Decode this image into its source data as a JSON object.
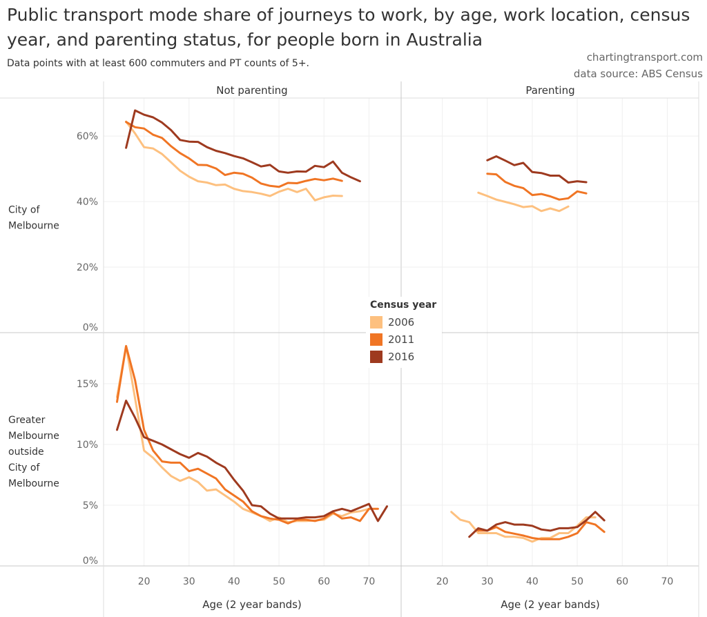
{
  "title": "Public transport mode share of journeys to work, by age, work location, census year, and parenting status, for people born in Australia",
  "subtitle": "Data points with at least 600 commuters and PT counts of 5+.",
  "credits": [
    "chartingtransport.com",
    "data source: ABS Census"
  ],
  "legend": {
    "title": "Census year",
    "items": [
      {
        "label": "2006",
        "color": "#fdc07f"
      },
      {
        "label": "2011",
        "color": "#f07524"
      },
      {
        "label": "2016",
        "color": "#9e3a1f"
      }
    ]
  },
  "chart_data": {
    "type": "line",
    "xlabel": "Age (2 year bands)",
    "xlim": [
      11,
      77
    ],
    "xticks": [
      20,
      30,
      40,
      50,
      60,
      70
    ],
    "grid": true,
    "legend_placement": "center",
    "columns": [
      "Not parenting",
      "Parenting"
    ],
    "rows": [
      {
        "label": [
          "City of",
          "Melbourne"
        ],
        "ylim": [
          0,
          71.6
        ],
        "yticks": [
          0,
          20,
          40,
          60
        ],
        "ytick_labels": [
          "0%",
          "20%",
          "40%",
          "60%"
        ]
      },
      {
        "label": [
          "Greater",
          "Melbourne",
          "outside",
          "City of",
          "Melbourne"
        ],
        "ylim": [
          0,
          19.2
        ],
        "yticks": [
          0,
          5,
          10,
          15
        ],
        "ytick_labels": [
          "0%",
          "5%",
          "10%",
          "15%"
        ]
      }
    ],
    "panels": [
      {
        "row": 0,
        "col": 0,
        "series": [
          {
            "name": "2006",
            "x_start": 16,
            "values": [
              64.4,
              60.8,
              56.6,
              56.2,
              54.5,
              52.0,
              49.4,
              47.6,
              46.2,
              45.8,
              45.0,
              45.2,
              43.9,
              43.2,
              42.9,
              42.4,
              41.7,
              43.0,
              43.9,
              42.9,
              43.9,
              40.4,
              41.3,
              41.8,
              41.7
            ]
          },
          {
            "name": "2011",
            "x_start": 16,
            "values": [
              64.3,
              62.7,
              62.3,
              60.4,
              59.4,
              56.9,
              54.8,
              53.2,
              51.2,
              51.1,
              50.1,
              48.1,
              48.8,
              48.5,
              47.3,
              45.5,
              44.8,
              44.5,
              45.7,
              45.6,
              46.3,
              46.9,
              46.5,
              47.0,
              46.3
            ]
          },
          {
            "name": "2016",
            "x_start": 16,
            "values": [
              56.4,
              67.8,
              66.5,
              65.7,
              64.1,
              61.8,
              58.8,
              58.3,
              58.2,
              56.6,
              55.5,
              54.8,
              53.9,
              53.2,
              52.0,
              50.7,
              51.2,
              49.2,
              48.8,
              49.2,
              49.1,
              50.9,
              50.5,
              52.2,
              48.8,
              47.4,
              46.2
            ]
          }
        ]
      },
      {
        "row": 0,
        "col": 1,
        "series": [
          {
            "name": "2006",
            "x_start": 28,
            "values": [
              42.7,
              41.7,
              40.6,
              39.9,
              39.2,
              38.3,
              38.6,
              37.1,
              37.9,
              37.1,
              38.5
            ]
          },
          {
            "name": "2011",
            "x_start": 30,
            "values": [
              48.5,
              48.3,
              46.0,
              44.8,
              44.1,
              42.0,
              42.3,
              41.6,
              40.6,
              41.0,
              43.1,
              42.5
            ]
          },
          {
            "name": "2016",
            "x_start": 30,
            "values": [
              52.6,
              53.8,
              52.5,
              51.1,
              51.8,
              49.0,
              48.7,
              47.9,
              47.9,
              45.8,
              46.2,
              45.9
            ]
          }
        ]
      },
      {
        "row": 1,
        "col": 0,
        "series": [
          {
            "name": "2006",
            "x_start": 14,
            "values": [
              13.9,
              18.1,
              13.8,
              9.5,
              8.9,
              8.1,
              7.4,
              7.0,
              7.3,
              6.9,
              6.2,
              6.3,
              5.8,
              5.3,
              4.7,
              4.4,
              4.1,
              3.7,
              4.0,
              3.6,
              3.7,
              3.7,
              3.75,
              3.8,
              4.3,
              4.1,
              4.4,
              4.5,
              4.7
            ]
          },
          {
            "name": "2011",
            "x_start": 14,
            "values": [
              13.5,
              18.1,
              15.3,
              11.2,
              9.5,
              8.6,
              8.5,
              8.5,
              7.8,
              8.0,
              7.6,
              7.2,
              6.3,
              5.8,
              5.3,
              4.5,
              4.1,
              3.9,
              3.8,
              3.5,
              3.8,
              3.8,
              3.7,
              3.9,
              4.4,
              3.9,
              4.0,
              3.7,
              4.7,
              4.7
            ]
          },
          {
            "name": "2016",
            "x_start": 14,
            "values": [
              11.2,
              13.6,
              12.2,
              10.6,
              10.3,
              10.0,
              9.6,
              9.2,
              8.9,
              9.3,
              9.0,
              8.5,
              8.1,
              7.1,
              6.2,
              5.0,
              4.9,
              4.3,
              3.9,
              3.9,
              3.9,
              4.0,
              4.0,
              4.1,
              4.5,
              4.7,
              4.5,
              4.8,
              5.1,
              3.7,
              4.9
            ]
          }
        ]
      },
      {
        "row": 1,
        "col": 1,
        "series": [
          {
            "name": "2006",
            "x_start": 22,
            "values": [
              4.45,
              3.8,
              3.6,
              2.7,
              2.7,
              2.7,
              2.4,
              2.4,
              2.3,
              2.0,
              2.3,
              2.3,
              2.7,
              2.7,
              3.3,
              4.0,
              4.0
            ]
          },
          {
            "name": "2011",
            "x_start": 28,
            "values": [
              2.9,
              2.9,
              3.2,
              2.8,
              2.65,
              2.5,
              2.3,
              2.2,
              2.2,
              2.2,
              2.4,
              2.7,
              3.6,
              3.4,
              2.8
            ]
          },
          {
            "name": "2016",
            "x_start": 26,
            "values": [
              2.4,
              3.1,
              2.9,
              3.4,
              3.6,
              3.4,
              3.4,
              3.3,
              3.0,
              2.9,
              3.1,
              3.1,
              3.2,
              3.75,
              4.45,
              3.75
            ]
          }
        ]
      }
    ]
  }
}
